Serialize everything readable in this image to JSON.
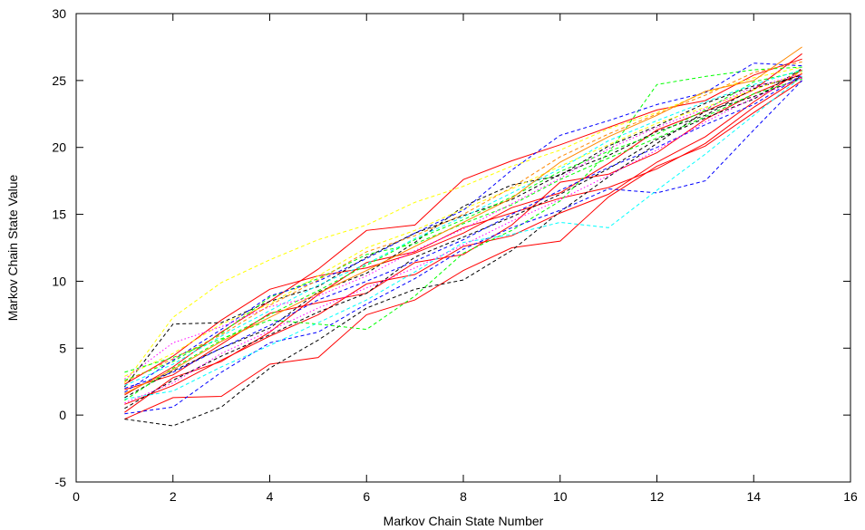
{
  "chart_data": {
    "type": "line",
    "title": "",
    "xlabel": "Markov Chain State Number",
    "ylabel": "Markov Chain State Value",
    "xlim": [
      0,
      16
    ],
    "ylim": [
      -5,
      30
    ],
    "xticks": [
      0,
      2,
      4,
      6,
      8,
      10,
      12,
      14,
      16
    ],
    "yticks": [
      -5,
      0,
      5,
      10,
      15,
      20,
      25,
      30
    ],
    "grid": false,
    "legend": "none",
    "x": [
      1,
      2,
      3,
      4,
      5,
      6,
      7,
      8,
      9,
      10,
      11,
      12,
      13,
      14,
      15
    ],
    "series": [
      {
        "color": "#ff0000",
        "style": "solid",
        "values": [
          -0.3,
          1.3,
          1.4,
          3.8,
          4.3,
          7.5,
          8.6,
          10.8,
          12.5,
          13.0,
          16.3,
          18.6,
          20.1,
          22.6,
          25.0
        ]
      },
      {
        "color": "#ff0000",
        "style": "solid",
        "values": [
          0.2,
          2.8,
          4.0,
          6.2,
          9.0,
          11.4,
          12.2,
          14.0,
          15.1,
          16.2,
          17.0,
          18.4,
          20.3,
          23.0,
          25.3
        ]
      },
      {
        "color": "#ff0000",
        "style": "solid",
        "values": [
          1.5,
          3.6,
          6.2,
          8.5,
          10.9,
          13.8,
          14.2,
          17.6,
          19.0,
          20.2,
          21.5,
          22.8,
          23.5,
          25.4,
          26.6
        ]
      },
      {
        "color": "#ff0000",
        "style": "solid",
        "values": [
          2.3,
          4.4,
          7.1,
          9.4,
          10.4,
          11.0,
          12.1,
          13.6,
          15.5,
          16.6,
          18.8,
          21.3,
          22.7,
          24.3,
          27.0
        ]
      },
      {
        "color": "#ff0000",
        "style": "solid",
        "values": [
          0.8,
          2.2,
          4.1,
          5.9,
          7.5,
          9.8,
          10.5,
          12.6,
          13.4,
          15.1,
          16.5,
          18.9,
          20.8,
          23.4,
          25.8
        ]
      },
      {
        "color": "#ff0000",
        "style": "solid",
        "values": [
          1.9,
          3.0,
          5.3,
          7.6,
          8.4,
          9.1,
          11.4,
          12.0,
          14.2,
          17.4,
          18.0,
          19.6,
          22.1,
          24.0,
          25.5
        ]
      },
      {
        "color": "#000000",
        "style": "dashed",
        "values": [
          -0.3,
          -0.8,
          0.6,
          3.5,
          5.6,
          8.0,
          9.4,
          10.1,
          12.3,
          15.2,
          17.8,
          20.3,
          22.7,
          23.8,
          25.2
        ]
      },
      {
        "color": "#000000",
        "style": "dashed",
        "values": [
          2.1,
          6.8,
          6.9,
          8.5,
          9.6,
          11.8,
          13.6,
          14.9,
          16.1,
          18.0,
          19.4,
          21.2,
          22.4,
          24.4,
          25.4
        ]
      },
      {
        "color": "#000000",
        "style": "dashed",
        "values": [
          1.3,
          3.3,
          5.0,
          6.5,
          9.2,
          10.6,
          12.9,
          15.6,
          17.2,
          17.9,
          20.1,
          21.6,
          23.3,
          24.6,
          25.2
        ]
      },
      {
        "color": "#000000",
        "style": "dashed",
        "values": [
          0.5,
          2.6,
          4.4,
          6.0,
          7.7,
          9.1,
          11.8,
          13.3,
          14.8,
          16.5,
          18.4,
          20.6,
          22.2,
          23.6,
          25.9
        ]
      },
      {
        "color": "#ffff00",
        "style": "dashed",
        "values": [
          2.4,
          7.3,
          9.9,
          11.6,
          13.1,
          14.2,
          15.9,
          17.1,
          18.6,
          19.8,
          21.4,
          22.6,
          24.1,
          25.2,
          26.0
        ]
      },
      {
        "color": "#ffff00",
        "style": "dashed",
        "values": [
          2.9,
          4.6,
          6.8,
          8.3,
          10.4,
          12.5,
          13.8,
          15.4,
          16.9,
          18.6,
          20.2,
          21.8,
          23.0,
          24.3,
          25.6
        ]
      },
      {
        "color": "#00ff00",
        "style": "dashed",
        "values": [
          3.2,
          4.3,
          5.7,
          7.1,
          6.8,
          6.4,
          8.9,
          12.1,
          13.8,
          16.0,
          19.6,
          24.7,
          25.3,
          25.8,
          26.0
        ]
      },
      {
        "color": "#00ff00",
        "style": "dashed",
        "values": [
          1.1,
          3.5,
          5.6,
          7.5,
          9.3,
          11.2,
          13.1,
          14.6,
          16.3,
          18.2,
          19.7,
          21.0,
          22.8,
          24.9,
          25.7
        ]
      },
      {
        "color": "#00ff00",
        "style": "dashed",
        "values": [
          2.6,
          4.0,
          6.1,
          8.8,
          10.2,
          12.0,
          12.8,
          14.3,
          15.7,
          17.6,
          19.2,
          20.7,
          22.3,
          24.0,
          25.1
        ]
      },
      {
        "color": "#0000ff",
        "style": "dashed",
        "values": [
          0.1,
          0.6,
          3.2,
          5.4,
          6.2,
          8.3,
          10.2,
          12.4,
          14.0,
          15.3,
          16.9,
          16.6,
          17.5,
          21.3,
          25.0
        ]
      },
      {
        "color": "#0000ff",
        "style": "dashed",
        "values": [
          1.7,
          4.1,
          6.4,
          8.9,
          10.0,
          11.7,
          13.6,
          15.3,
          18.3,
          20.9,
          22.0,
          23.2,
          24.1,
          26.3,
          26.1
        ]
      },
      {
        "color": "#0000ff",
        "style": "dashed",
        "values": [
          2.0,
          3.2,
          5.0,
          6.7,
          8.6,
          10.0,
          11.5,
          13.1,
          15.0,
          16.8,
          18.5,
          20.0,
          21.7,
          23.2,
          25.4
        ]
      },
      {
        "color": "#00ffff",
        "style": "dashed",
        "values": [
          1.2,
          1.8,
          3.6,
          5.2,
          6.9,
          8.6,
          10.7,
          12.9,
          13.5,
          14.4,
          14.0,
          16.8,
          19.5,
          22.4,
          25.3
        ]
      },
      {
        "color": "#00ffff",
        "style": "dashed",
        "values": [
          2.2,
          3.8,
          5.9,
          7.8,
          9.7,
          11.3,
          13.2,
          14.8,
          16.6,
          18.4,
          20.5,
          22.0,
          23.4,
          24.7,
          25.8
        ]
      },
      {
        "color": "#ff00ff",
        "style": "dotted",
        "values": [
          2.7,
          5.4,
          6.6,
          8.1,
          8.9,
          10.4,
          12.3,
          13.9,
          15.8,
          17.7,
          19.9,
          21.5,
          22.9,
          24.5,
          25.5
        ]
      },
      {
        "color": "#ff00ff",
        "style": "dotted",
        "values": [
          0.9,
          2.4,
          4.6,
          6.3,
          8.0,
          9.5,
          11.0,
          12.7,
          14.5,
          16.1,
          17.9,
          19.8,
          21.9,
          23.7,
          25.2
        ]
      },
      {
        "color": "#ff8800",
        "style": "solid",
        "values": [
          1.6,
          3.4,
          5.5,
          7.3,
          9.1,
          10.8,
          12.6,
          14.4,
          16.2,
          18.9,
          20.8,
          22.4,
          24.2,
          25.0,
          27.5
        ]
      },
      {
        "color": "#ff8800",
        "style": "dashed",
        "values": [
          2.5,
          4.2,
          6.0,
          8.2,
          10.1,
          12.2,
          13.4,
          15.0,
          17.0,
          19.3,
          21.0,
          22.5,
          23.9,
          25.6,
          26.4
        ]
      }
    ]
  }
}
